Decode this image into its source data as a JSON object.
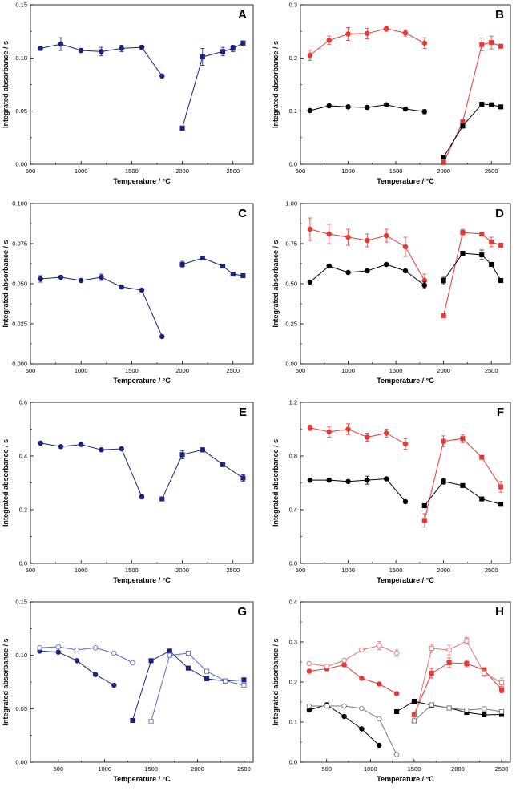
{
  "figure": {
    "x_axis_title": "Temperature / °C",
    "y_axis_title": "Integrated absorbance / s"
  },
  "chart_data": [
    {
      "panel": "A",
      "type": "line",
      "xlim": [
        500,
        2700
      ],
      "ylim": [
        0,
        0.15
      ],
      "xticks": [
        "500",
        "1000",
        "1500",
        "2000",
        "2500"
      ],
      "yticks": [
        "0.00",
        "0.05",
        "0.10",
        "0.15"
      ],
      "series": [
        {
          "name": "blue-circles",
          "color": "#1a237e",
          "marker": "circle",
          "filled": true,
          "x": [
            600,
            800,
            1000,
            1200,
            1400,
            1600,
            1800
          ],
          "y": [
            0.109,
            0.113,
            0.107,
            0.106,
            0.109,
            0.11,
            0.083
          ],
          "err": [
            0.002,
            0.006,
            0.002,
            0.004,
            0.003,
            0.002,
            0.001
          ]
        },
        {
          "name": "blue-squares",
          "color": "#1a237e",
          "marker": "square",
          "filled": true,
          "x": [
            2000,
            2200,
            2400,
            2500,
            2600
          ],
          "y": [
            0.034,
            0.101,
            0.106,
            0.109,
            0.114
          ],
          "err": [
            0.002,
            0.008,
            0.004,
            0.003,
            0.002
          ]
        }
      ]
    },
    {
      "panel": "B",
      "type": "line",
      "xlim": [
        500,
        2700
      ],
      "ylim": [
        0,
        0.3
      ],
      "xticks": [
        "500",
        "1000",
        "1500",
        "2000",
        "2500"
      ],
      "yticks": [
        "0.0",
        "0.1",
        "0.2",
        "0.3"
      ],
      "series": [
        {
          "name": "red-circles",
          "color": "#e53935",
          "marker": "circle",
          "filled": true,
          "x": [
            600,
            800,
            1000,
            1200,
            1400,
            1600,
            1800
          ],
          "y": [
            0.205,
            0.233,
            0.245,
            0.246,
            0.255,
            0.247,
            0.228
          ],
          "err": [
            0.01,
            0.008,
            0.012,
            0.01,
            0.005,
            0.006,
            0.01
          ]
        },
        {
          "name": "black-circles",
          "color": "#000000",
          "marker": "circle",
          "filled": true,
          "x": [
            600,
            800,
            1000,
            1200,
            1400,
            1600,
            1800
          ],
          "y": [
            0.101,
            0.11,
            0.108,
            0.107,
            0.112,
            0.104,
            0.099
          ],
          "err": [
            0.003,
            0.003,
            0.003,
            0.003,
            0.003,
            0.004,
            0.004
          ]
        },
        {
          "name": "red-squares",
          "color": "#e53935",
          "marker": "square",
          "filled": true,
          "x": [
            2000,
            2200,
            2400,
            2500,
            2600
          ],
          "y": [
            0.003,
            0.08,
            0.225,
            0.229,
            0.222
          ],
          "err": [
            0.002,
            0.004,
            0.012,
            0.012,
            0.003
          ]
        },
        {
          "name": "black-squares",
          "color": "#000000",
          "marker": "square",
          "filled": true,
          "x": [
            2000,
            2200,
            2400,
            2500,
            2600
          ],
          "y": [
            0.013,
            0.072,
            0.113,
            0.112,
            0.108
          ],
          "err": [
            0.002,
            0.004,
            0.003,
            0.003,
            0.003
          ]
        }
      ]
    },
    {
      "panel": "C",
      "type": "line",
      "xlim": [
        500,
        2700
      ],
      "ylim": [
        0,
        0.1
      ],
      "xticks": [
        "500",
        "1000",
        "1500",
        "2000",
        "2500"
      ],
      "yticks": [
        "0.000",
        "0.025",
        "0.050",
        "0.075",
        "0.100"
      ],
      "series": [
        {
          "name": "blue-circles",
          "color": "#1a237e",
          "marker": "circle",
          "filled": true,
          "x": [
            600,
            800,
            1000,
            1200,
            1400,
            1600,
            1800
          ],
          "y": [
            0.053,
            0.054,
            0.052,
            0.054,
            0.048,
            0.046,
            0.017
          ],
          "err": [
            0.002,
            0.001,
            0.001,
            0.002,
            0.001,
            0.001,
            0.001
          ]
        },
        {
          "name": "blue-squares",
          "color": "#1a237e",
          "marker": "square",
          "filled": true,
          "x": [
            2000,
            2200,
            2400,
            2500,
            2600
          ],
          "y": [
            0.062,
            0.066,
            0.061,
            0.056,
            0.055
          ],
          "err": [
            0.002,
            0.001,
            0.001,
            0.001,
            0.001
          ]
        }
      ]
    },
    {
      "panel": "D",
      "type": "line",
      "xlim": [
        500,
        2700
      ],
      "ylim": [
        0,
        1.0
      ],
      "xticks": [
        "500",
        "1000",
        "1500",
        "2000",
        "2500"
      ],
      "yticks": [
        "0.00",
        "0.25",
        "0.50",
        "0.75",
        "1.00"
      ],
      "series": [
        {
          "name": "red-circles",
          "color": "#e53935",
          "marker": "circle",
          "filled": true,
          "x": [
            600,
            800,
            1000,
            1200,
            1400,
            1600,
            1800
          ],
          "y": [
            0.84,
            0.81,
            0.79,
            0.77,
            0.8,
            0.73,
            0.52
          ],
          "err": [
            0.07,
            0.06,
            0.05,
            0.04,
            0.04,
            0.06,
            0.04
          ]
        },
        {
          "name": "black-circles",
          "color": "#000000",
          "marker": "circle",
          "filled": true,
          "x": [
            600,
            800,
            1000,
            1200,
            1400,
            1600,
            1800
          ],
          "y": [
            0.51,
            0.61,
            0.57,
            0.58,
            0.62,
            0.58,
            0.49
          ],
          "err": [
            0.01,
            0.01,
            0.01,
            0.01,
            0.01,
            0.01,
            0.02
          ]
        },
        {
          "name": "red-squares",
          "color": "#e53935",
          "marker": "square",
          "filled": true,
          "x": [
            2000,
            2200,
            2400,
            2500,
            2600
          ],
          "y": [
            0.3,
            0.82,
            0.81,
            0.76,
            0.74
          ],
          "err": [
            0.01,
            0.02,
            0.01,
            0.03,
            0.01
          ]
        },
        {
          "name": "black-squares",
          "color": "#000000",
          "marker": "square",
          "filled": true,
          "x": [
            2000,
            2200,
            2400,
            2500,
            2600
          ],
          "y": [
            0.52,
            0.69,
            0.68,
            0.62,
            0.52
          ],
          "err": [
            0.02,
            0.01,
            0.03,
            0.01,
            0.01
          ]
        }
      ]
    },
    {
      "panel": "E",
      "type": "line",
      "xlim": [
        500,
        2700
      ],
      "ylim": [
        0,
        0.6
      ],
      "xticks": [
        "500",
        "1000",
        "1500",
        "2000",
        "2500"
      ],
      "yticks": [
        "0.0",
        "0.2",
        "0.4",
        "0.6"
      ],
      "series": [
        {
          "name": "blue-circles",
          "color": "#1a237e",
          "marker": "circle",
          "filled": true,
          "x": [
            600,
            800,
            1000,
            1200,
            1400,
            1600
          ],
          "y": [
            0.448,
            0.435,
            0.443,
            0.423,
            0.427,
            0.248
          ],
          "err": [
            0.005,
            0.005,
            0.005,
            0.005,
            0.005,
            0.008
          ]
        },
        {
          "name": "blue-squares",
          "color": "#1a237e",
          "marker": "square",
          "filled": true,
          "x": [
            1800,
            2000,
            2200,
            2400,
            2600
          ],
          "y": [
            0.24,
            0.405,
            0.423,
            0.368,
            0.318
          ],
          "err": [
            0.004,
            0.015,
            0.008,
            0.005,
            0.012
          ]
        }
      ]
    },
    {
      "panel": "F",
      "type": "line",
      "xlim": [
        500,
        2700
      ],
      "ylim": [
        0,
        1.2
      ],
      "xticks": [
        "500",
        "1000",
        "1500",
        "2000",
        "2500"
      ],
      "yticks": [
        "0.0",
        "0.4",
        "0.8",
        "1.2"
      ],
      "series": [
        {
          "name": "red-circles",
          "color": "#e53935",
          "marker": "circle",
          "filled": true,
          "x": [
            600,
            800,
            1000,
            1200,
            1400,
            1600
          ],
          "y": [
            1.01,
            0.98,
            1.0,
            0.94,
            0.97,
            0.89
          ],
          "err": [
            0.02,
            0.04,
            0.04,
            0.03,
            0.03,
            0.04
          ]
        },
        {
          "name": "black-circles",
          "color": "#000000",
          "marker": "circle",
          "filled": true,
          "x": [
            600,
            800,
            1000,
            1200,
            1400,
            1600
          ],
          "y": [
            0.62,
            0.62,
            0.61,
            0.62,
            0.63,
            0.46
          ],
          "err": [
            0.01,
            0.01,
            0.01,
            0.03,
            0.01,
            0.01
          ]
        },
        {
          "name": "red-squares",
          "color": "#e53935",
          "marker": "square",
          "filled": true,
          "x": [
            1800,
            2000,
            2200,
            2400,
            2600
          ],
          "y": [
            0.32,
            0.91,
            0.93,
            0.79,
            0.57
          ],
          "err": [
            0.05,
            0.04,
            0.03,
            0.01,
            0.04
          ]
        },
        {
          "name": "black-squares",
          "color": "#000000",
          "marker": "square",
          "filled": true,
          "x": [
            1800,
            2000,
            2200,
            2400,
            2600
          ],
          "y": [
            0.43,
            0.61,
            0.58,
            0.48,
            0.44
          ],
          "err": [
            0.01,
            0.02,
            0.01,
            0.01,
            0.01
          ]
        }
      ]
    },
    {
      "panel": "G",
      "type": "line",
      "xlim": [
        200,
        2600
      ],
      "ylim": [
        0,
        0.15
      ],
      "xticks": [
        "500",
        "1000",
        "1500",
        "2000",
        "2500"
      ],
      "yticks": [
        "0.00",
        "0.05",
        "0.10",
        "0.15"
      ],
      "series": [
        {
          "name": "blue-filled-circles",
          "color": "#1a237e",
          "marker": "circle",
          "filled": true,
          "x": [
            300,
            500,
            700,
            900,
            1100
          ],
          "y": [
            0.104,
            0.103,
            0.095,
            0.082,
            0.072
          ]
        },
        {
          "name": "blue-open-circles",
          "color": "#5c6bc0",
          "marker": "circle",
          "filled": false,
          "x": [
            300,
            500,
            700,
            900,
            1100,
            1300
          ],
          "y": [
            0.107,
            0.108,
            0.105,
            0.107,
            0.102,
            0.093
          ]
        },
        {
          "name": "blue-filled-squares",
          "color": "#1a237e",
          "marker": "square",
          "filled": true,
          "x": [
            1300,
            1500,
            1700,
            1900,
            2100,
            2300,
            2500
          ],
          "y": [
            0.039,
            0.095,
            0.104,
            0.088,
            0.078,
            0.076,
            0.077
          ]
        },
        {
          "name": "blue-open-squares",
          "color": "#5c6bc0",
          "marker": "square",
          "filled": false,
          "x": [
            1500,
            1700,
            1900,
            2100,
            2300,
            2500
          ],
          "y": [
            0.038,
            0.1,
            0.102,
            0.085,
            0.076,
            0.072
          ]
        }
      ]
    },
    {
      "panel": "H",
      "type": "line",
      "xlim": [
        200,
        2600
      ],
      "ylim": [
        0,
        0.4
      ],
      "xticks": [
        "500",
        "1000",
        "1500",
        "2000",
        "2500"
      ],
      "yticks": [
        "0.0",
        "0.1",
        "0.2",
        "0.3",
        "0.4"
      ],
      "series": [
        {
          "name": "red-filled-circles",
          "color": "#e53935",
          "marker": "circle",
          "filled": true,
          "x": [
            300,
            500,
            700,
            900,
            1100,
            1300
          ],
          "y": [
            0.227,
            0.233,
            0.243,
            0.209,
            0.195,
            0.171
          ],
          "err": [
            0.005,
            0.005,
            0.005,
            0.004,
            0.004,
            0.003
          ]
        },
        {
          "name": "red-open-circles",
          "color": "#e57373",
          "marker": "circle",
          "filled": false,
          "x": [
            300,
            500,
            700,
            900,
            1100,
            1300
          ],
          "y": [
            0.246,
            0.239,
            0.254,
            0.28,
            0.291,
            0.272
          ],
          "err": [
            0.004,
            0.004,
            0.004,
            0.005,
            0.01,
            0.008
          ]
        },
        {
          "name": "black-filled-circles",
          "color": "#000000",
          "marker": "circle",
          "filled": true,
          "x": [
            300,
            500,
            700,
            900,
            1100
          ],
          "y": [
            0.13,
            0.143,
            0.114,
            0.083,
            0.042
          ]
        },
        {
          "name": "grey-open-circles",
          "color": "#777777",
          "marker": "circle",
          "filled": false,
          "x": [
            300,
            500,
            700,
            900,
            1100,
            1300
          ],
          "y": [
            0.14,
            0.14,
            0.14,
            0.134,
            0.108,
            0.019
          ]
        },
        {
          "name": "red-filled-squares",
          "color": "#e53935",
          "marker": "square",
          "filled": true,
          "x": [
            1500,
            1700,
            1900,
            2100,
            2300,
            2500
          ],
          "y": [
            0.118,
            0.222,
            0.248,
            0.246,
            0.23,
            0.181
          ],
          "err": [
            0.004,
            0.012,
            0.012,
            0.008,
            0.006,
            0.008
          ]
        },
        {
          "name": "red-open-squares",
          "color": "#e57373",
          "marker": "square",
          "filled": false,
          "x": [
            1500,
            1700,
            1900,
            2100,
            2300,
            2500
          ],
          "y": [
            0.103,
            0.284,
            0.28,
            0.303,
            0.222,
            0.198
          ],
          "err": [
            0.004,
            0.01,
            0.012,
            0.008,
            0.008,
            0.012
          ]
        },
        {
          "name": "black-filled-squares",
          "color": "#000000",
          "marker": "square",
          "filled": true,
          "x": [
            1300,
            1500,
            1700,
            1900,
            2100,
            2300,
            2500
          ],
          "y": [
            0.126,
            0.152,
            0.142,
            0.135,
            0.124,
            0.118,
            0.119
          ]
        },
        {
          "name": "grey-open-squares",
          "color": "#777777",
          "marker": "square",
          "filled": false,
          "x": [
            1500,
            1700,
            1900,
            2100,
            2300,
            2500
          ],
          "y": [
            0.103,
            0.143,
            0.135,
            0.13,
            0.133,
            0.126
          ]
        }
      ]
    }
  ]
}
